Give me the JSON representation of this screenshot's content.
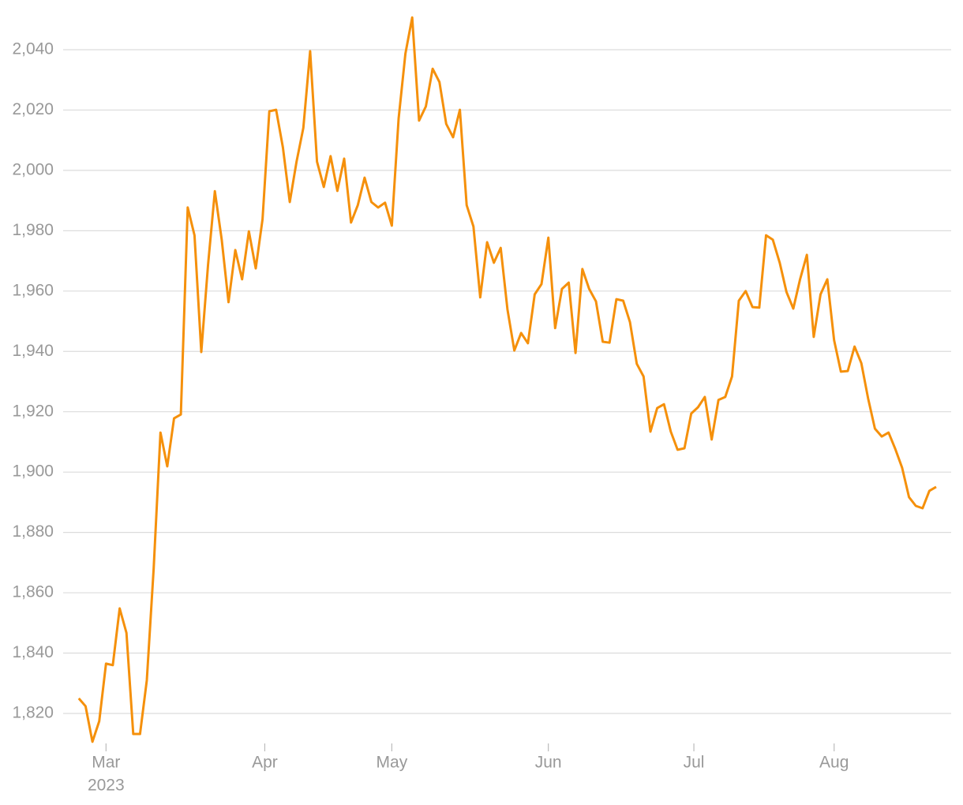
{
  "chart_data": {
    "type": "line",
    "values": [
      1825,
      1822.4,
      1810.6,
      1817.4,
      1836.5,
      1836,
      1854.8,
      1846.7,
      1813.2,
      1813.2,
      1831,
      1868.1,
      1913.1,
      1901.9,
      1917.8,
      1919.1,
      1987.7,
      1978.5,
      1939.8,
      1968.8,
      1993.1,
      1977,
      1956.3,
      1973.6,
      1963.9,
      1979.8,
      1967.5,
      1983.8,
      2019.6,
      2020.1,
      2007.6,
      1989.5,
      2002.9,
      2014.1,
      2039.5,
      2002.9,
      1994.5,
      2004.7,
      1993.2,
      2003.9,
      1982.7,
      1988.5,
      1997.6,
      1989.5,
      1987.7,
      1989.3,
      1981.7,
      2017.2,
      2038.7,
      2050.7,
      2016.5,
      2021.2,
      2033.7,
      2029.3,
      2015.4,
      2011,
      2020.1,
      1988.5,
      1981.4,
      1957.9,
      1976.2,
      1969.4,
      1974.3,
      1953.9,
      1940.3,
      1946.1,
      1942.7,
      1958.9,
      1962.3,
      1977.7,
      1947.7,
      1960.7,
      1962.8,
      1939.5,
      1967.3,
      1960.7,
      1956.6,
      1943.2,
      1942.9,
      1957.3,
      1956.8,
      1949.7,
      1935.9,
      1931.7,
      1913.4,
      1921.2,
      1922.5,
      1913.4,
      1907.4,
      1907.9,
      1919.4,
      1921.5,
      1924.9,
      1910.8,
      1923.9,
      1924.9,
      1931.7,
      1956.8,
      1960,
      1954.7,
      1954.5,
      1978.5,
      1977,
      1969.4,
      1959.7,
      1954.2,
      1963.9,
      1972,
      1944.8,
      1958.9,
      1963.9,
      1943.7,
      1933.3,
      1933.5,
      1941.6,
      1936.1,
      1924.4,
      1914.4,
      1911.8,
      1913.1,
      1907.6,
      1901.4,
      1891.7,
      1888.8,
      1888,
      1893.8,
      1895.1
    ],
    "color": "#f5900b",
    "xlim": [
      -2.3,
      128.2
    ],
    "xticks": [
      {
        "value": 4,
        "label": "Mar"
      },
      {
        "value": 27.33,
        "label": "Apr"
      },
      {
        "value": 46,
        "label": "May"
      },
      {
        "value": 69,
        "label": "Jun"
      },
      {
        "value": 90.39,
        "label": "Jul"
      },
      {
        "value": 111,
        "label": "Aug"
      }
    ],
    "xtick_year": "2023",
    "ylim": [
      1810,
      2053
    ],
    "yticks": [
      {
        "value": 1820,
        "label": "1,820"
      },
      {
        "value": 1840,
        "label": "1,840"
      },
      {
        "value": 1860,
        "label": "1,860"
      },
      {
        "value": 1880,
        "label": "1,880"
      },
      {
        "value": 1900,
        "label": "1,900"
      },
      {
        "value": 1920,
        "label": "1,920"
      },
      {
        "value": 1940,
        "label": "1,940"
      },
      {
        "value": 1960,
        "label": "1,960"
      },
      {
        "value": 1980,
        "label": "1,980"
      },
      {
        "value": 2000,
        "label": "2,000"
      },
      {
        "value": 2020,
        "label": "2,020"
      },
      {
        "value": 2040,
        "label": "2,040"
      }
    ],
    "grid": true
  }
}
